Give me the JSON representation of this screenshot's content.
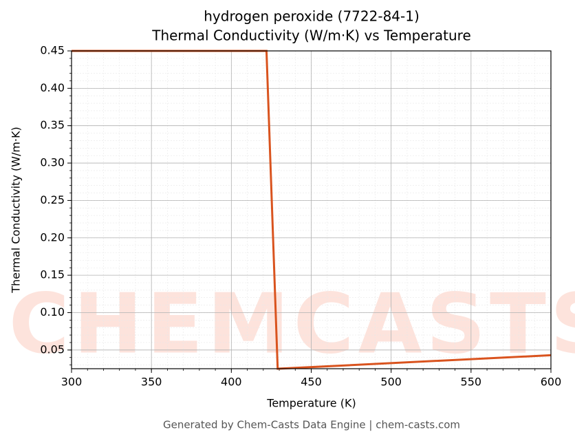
{
  "chart_data": {
    "type": "line",
    "title": "hydrogen peroxide (7722-84-1)",
    "subtitle": "Thermal Conductivity (W/m·K) vs Temperature",
    "x_label": "Temperature (K)",
    "y_label": "Thermal Conductivity (W/m·K)",
    "watermark": "CHEMCASTS",
    "footer": "Generated by Chem-Casts Data Engine | chem-casts.com",
    "x": [
      300,
      422,
      429,
      600
    ],
    "series": [
      {
        "name": "Thermal Conductivity",
        "color": "#d9531e",
        "values": [
          0.45,
          0.45,
          0.025,
          0.043
        ]
      }
    ],
    "xlim": [
      300,
      600
    ],
    "ylim": [
      0.025,
      0.45
    ],
    "xticks": [
      300,
      350,
      400,
      450,
      500,
      550,
      600
    ],
    "yticks": [
      0.05,
      {
        "value": 0.1,
        "label": "0.10"
      },
      0.15,
      {
        "value": 0.2,
        "label": "0.20"
      },
      0.25,
      {
        "value": 0.3,
        "label": "0.30"
      },
      0.35,
      {
        "value": 0.4,
        "label": "0.40"
      },
      0.45
    ],
    "grid": true
  }
}
